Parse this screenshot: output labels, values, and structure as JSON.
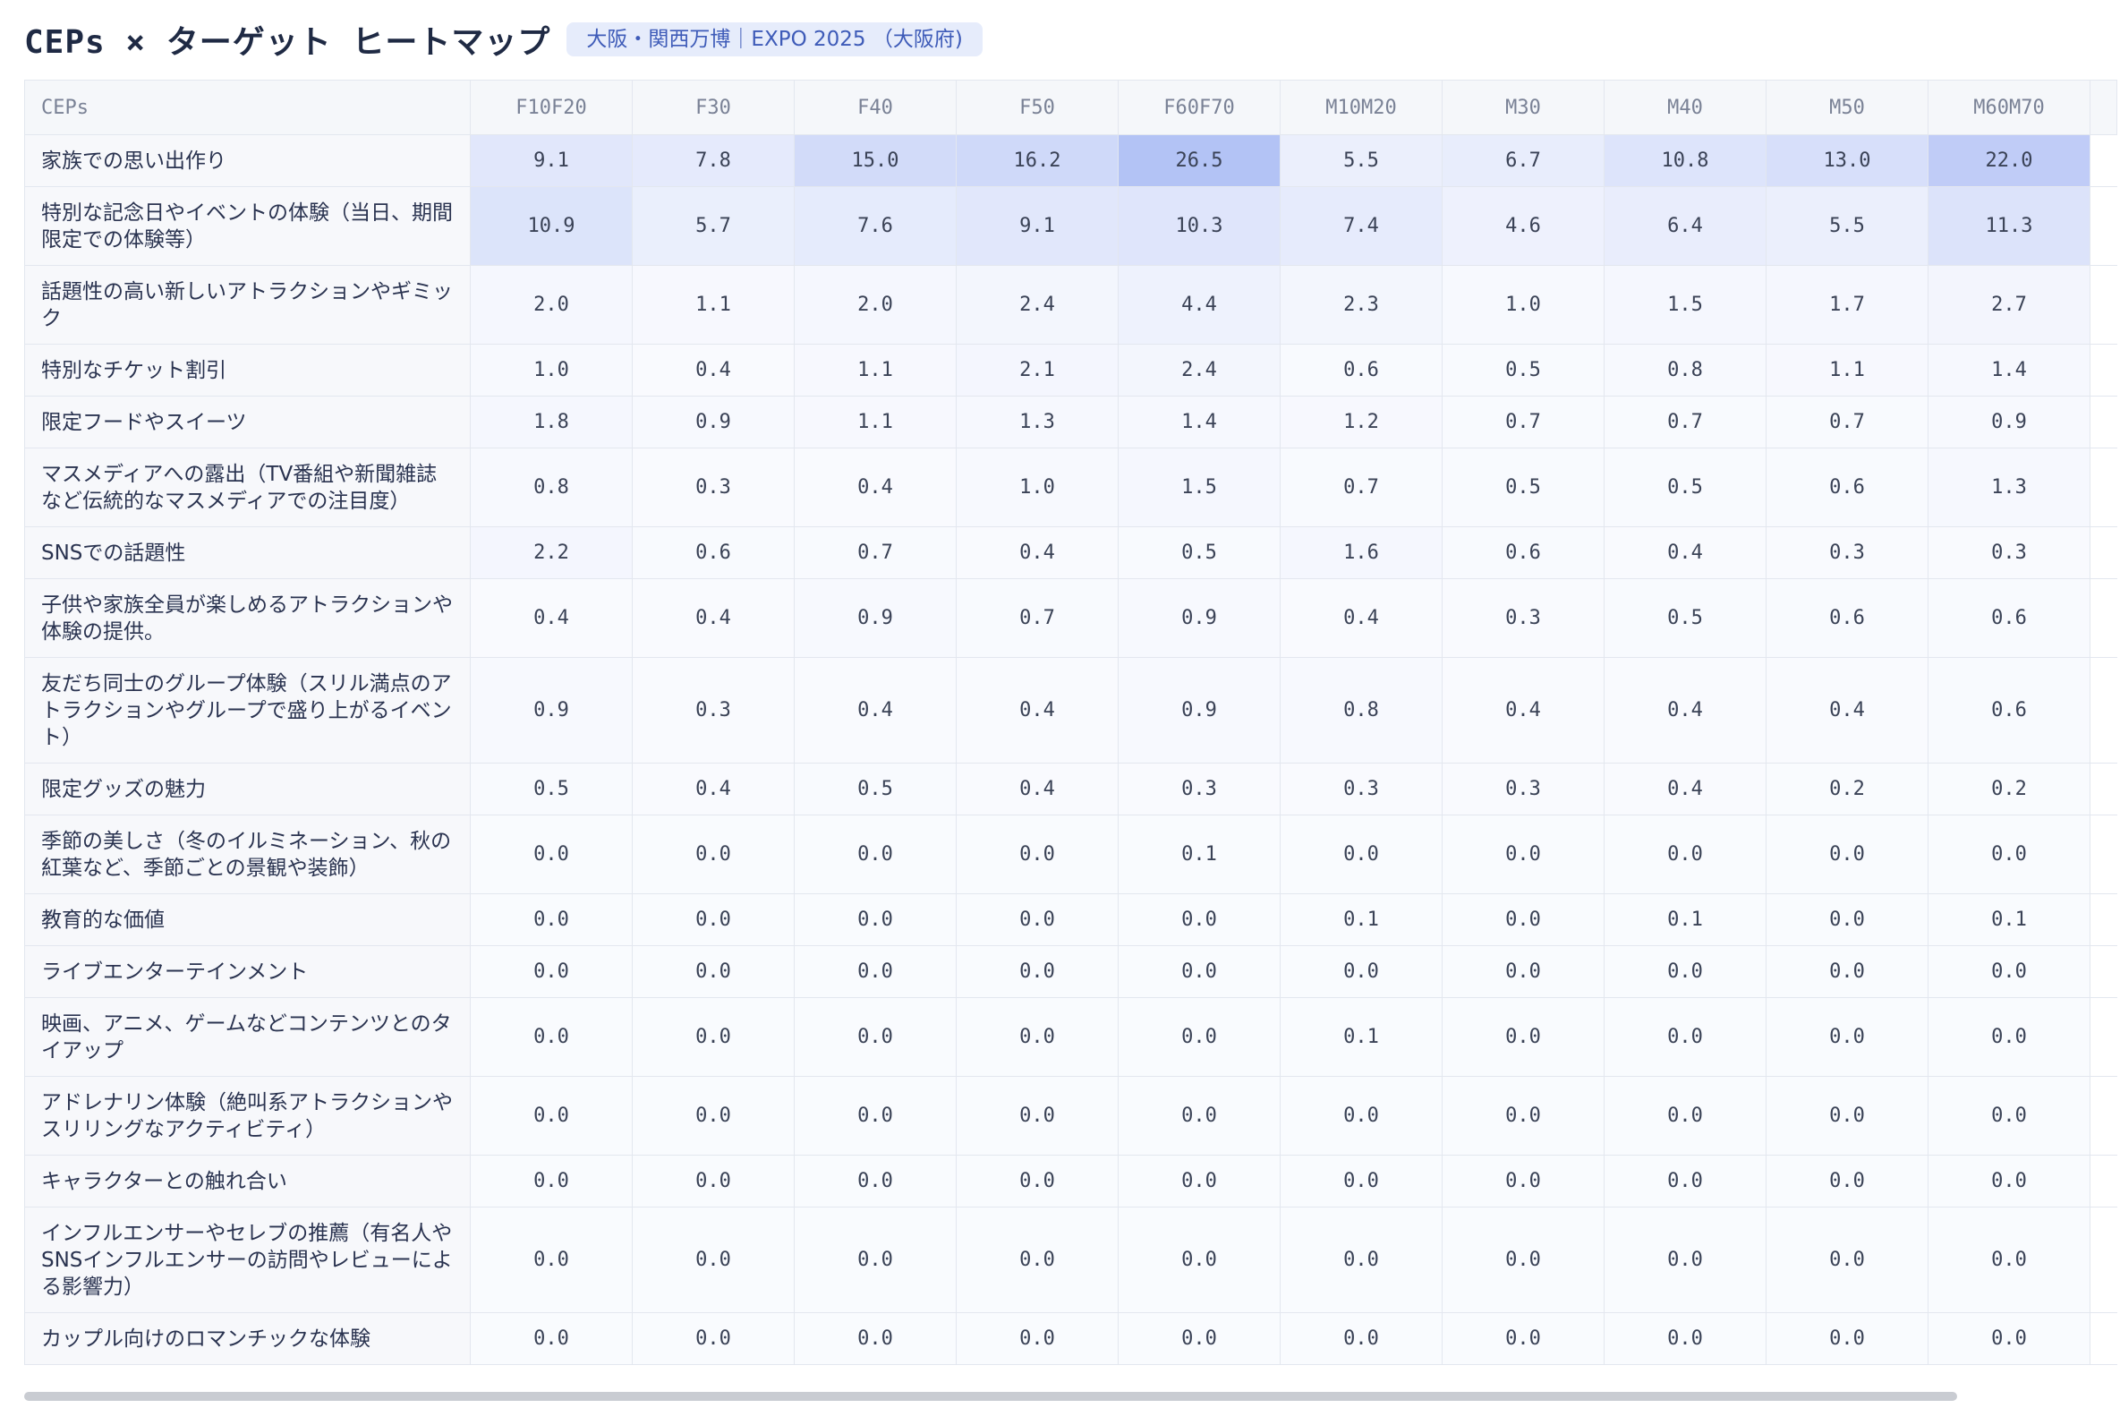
{
  "header": {
    "title": "CEPs × ターゲット ヒートマップ",
    "tag": "大阪・関西万博｜EXPO 2025 （大阪府)"
  },
  "table": {
    "corner_label": "CEPs",
    "columns": [
      "F10F20",
      "F30",
      "F40",
      "F50",
      "F60F70",
      "M10M20",
      "M30",
      "M40",
      "M50",
      "M60M70"
    ],
    "heat_color": "#4f73e8",
    "heat_max": 26.5,
    "rows": [
      {
        "label": "家族での思い出作り",
        "values": [
          9.1,
          7.8,
          15.0,
          16.2,
          26.5,
          5.5,
          6.7,
          10.8,
          13.0,
          22.0
        ]
      },
      {
        "label": "特別な記念日やイベントの体験（当日、期間限定での体験等）",
        "values": [
          10.9,
          5.7,
          7.6,
          9.1,
          10.3,
          7.4,
          4.6,
          6.4,
          5.5,
          11.3
        ]
      },
      {
        "label": "話題性の高い新しいアトラクションやギミック",
        "values": [
          2.0,
          1.1,
          2.0,
          2.4,
          4.4,
          2.3,
          1.0,
          1.5,
          1.7,
          2.7
        ]
      },
      {
        "label": "特別なチケット割引",
        "values": [
          1.0,
          0.4,
          1.1,
          2.1,
          2.4,
          0.6,
          0.5,
          0.8,
          1.1,
          1.4
        ]
      },
      {
        "label": "限定フードやスイーツ",
        "values": [
          1.8,
          0.9,
          1.1,
          1.3,
          1.4,
          1.2,
          0.7,
          0.7,
          0.7,
          0.9
        ]
      },
      {
        "label": "マスメディアへの露出（TV番組や新聞雑誌など伝統的なマスメディアでの注目度）",
        "values": [
          0.8,
          0.3,
          0.4,
          1.0,
          1.5,
          0.7,
          0.5,
          0.5,
          0.6,
          1.3
        ]
      },
      {
        "label": "SNSでの話題性",
        "values": [
          2.2,
          0.6,
          0.7,
          0.4,
          0.5,
          1.6,
          0.6,
          0.4,
          0.3,
          0.3
        ]
      },
      {
        "label": "子供や家族全員が楽しめるアトラクションや体験の提供。",
        "values": [
          0.4,
          0.4,
          0.9,
          0.7,
          0.9,
          0.4,
          0.3,
          0.5,
          0.6,
          0.6
        ]
      },
      {
        "label": "友だち同士のグループ体験（スリル満点のアトラクションやグループで盛り上がるイベント）",
        "values": [
          0.9,
          0.3,
          0.4,
          0.4,
          0.9,
          0.8,
          0.4,
          0.4,
          0.4,
          0.6
        ]
      },
      {
        "label": "限定グッズの魅力",
        "values": [
          0.5,
          0.4,
          0.5,
          0.4,
          0.3,
          0.3,
          0.3,
          0.4,
          0.2,
          0.2
        ]
      },
      {
        "label": "季節の美しさ（冬のイルミネーション、秋の紅葉など、季節ごとの景観や装飾）",
        "values": [
          0.0,
          0.0,
          0.0,
          0.0,
          0.1,
          0.0,
          0.0,
          0.0,
          0.0,
          0.0
        ]
      },
      {
        "label": "教育的な価値",
        "values": [
          0.0,
          0.0,
          0.0,
          0.0,
          0.0,
          0.1,
          0.0,
          0.1,
          0.0,
          0.1
        ]
      },
      {
        "label": "ライブエンターテインメント",
        "values": [
          0.0,
          0.0,
          0.0,
          0.0,
          0.0,
          0.0,
          0.0,
          0.0,
          0.0,
          0.0
        ]
      },
      {
        "label": "映画、アニメ、ゲームなどコンテンツとのタイアップ",
        "values": [
          0.0,
          0.0,
          0.0,
          0.0,
          0.0,
          0.1,
          0.0,
          0.0,
          0.0,
          0.0
        ]
      },
      {
        "label": "アドレナリン体験（絶叫系アトラクションやスリリングなアクティビティ）",
        "values": [
          0.0,
          0.0,
          0.0,
          0.0,
          0.0,
          0.0,
          0.0,
          0.0,
          0.0,
          0.0
        ]
      },
      {
        "label": "キャラクターとの触れ合い",
        "values": [
          0.0,
          0.0,
          0.0,
          0.0,
          0.0,
          0.0,
          0.0,
          0.0,
          0.0,
          0.0
        ]
      },
      {
        "label": "インフルエンサーやセレブの推薦（有名人やSNSインフルエンサーの訪問やレビューによる影響力）",
        "values": [
          0.0,
          0.0,
          0.0,
          0.0,
          0.0,
          0.0,
          0.0,
          0.0,
          0.0,
          0.0
        ]
      },
      {
        "label": "カップル向けのロマンチックな体験",
        "values": [
          0.0,
          0.0,
          0.0,
          0.0,
          0.0,
          0.0,
          0.0,
          0.0,
          0.0,
          0.0
        ]
      }
    ]
  }
}
